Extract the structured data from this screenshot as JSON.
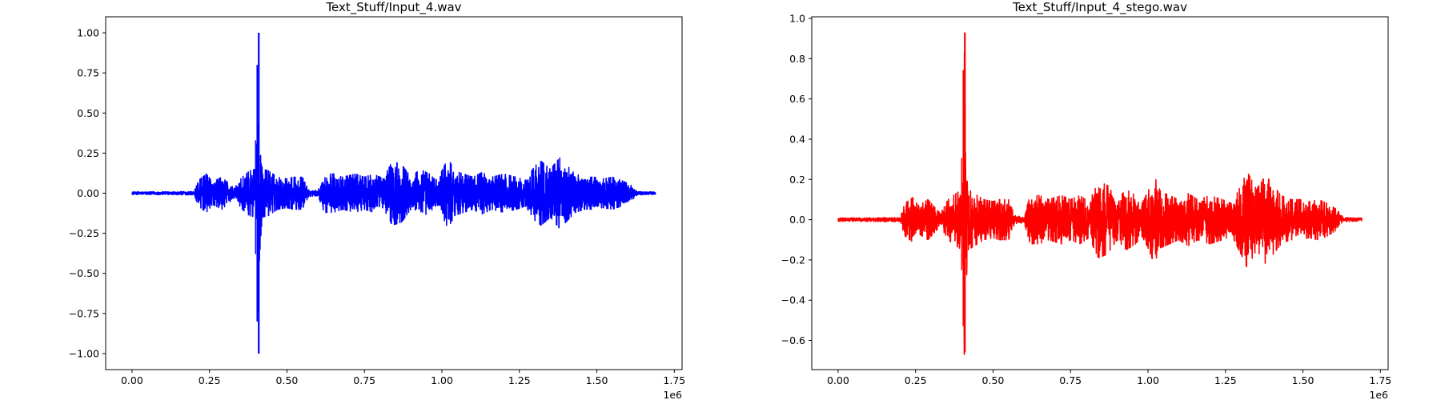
{
  "chart_data": [
    {
      "type": "line",
      "title": "Text_Stuff/Input_4.wav",
      "xlabel": "",
      "ylabel": "",
      "x_offset_text": "1e6",
      "color": "#0000ff",
      "xlim": [
        -0.085,
        1.775
      ],
      "ylim": [
        -1.1,
        1.1
      ],
      "xticks": [
        0.0,
        0.25,
        0.5,
        0.75,
        1.0,
        1.25,
        1.5,
        1.75
      ],
      "xtick_labels": [
        "0.00",
        "0.25",
        "0.50",
        "0.75",
        "1.00",
        "1.25",
        "1.50",
        "1.75"
      ],
      "yticks": [
        -1.0,
        -0.75,
        -0.5,
        -0.25,
        0.0,
        0.25,
        0.5,
        0.75,
        1.0
      ],
      "ytick_labels": [
        "−1.00",
        "−0.75",
        "−0.50",
        "−0.25",
        "0.00",
        "0.25",
        "0.50",
        "0.75",
        "1.00"
      ],
      "grid": false,
      "series": [
        {
          "x_range": [
            0.0,
            1.69
          ],
          "noise_floor": 0.008,
          "envelope": [
            [
              0.0,
              0.008
            ],
            [
              0.2,
              0.01
            ],
            [
              0.215,
              0.08
            ],
            [
              0.24,
              0.12
            ],
            [
              0.26,
              0.07
            ],
            [
              0.29,
              0.1
            ],
            [
              0.33,
              0.03
            ],
            [
              0.355,
              0.1
            ],
            [
              0.38,
              0.14
            ],
            [
              0.4,
              0.15
            ],
            [
              0.403,
              0.33
            ],
            [
              0.406,
              0.8
            ],
            [
              0.409,
              1.0
            ],
            [
              0.412,
              0.38
            ],
            [
              0.42,
              0.15
            ],
            [
              0.44,
              0.14
            ],
            [
              0.47,
              0.1
            ],
            [
              0.5,
              0.09
            ],
            [
              0.52,
              0.1
            ],
            [
              0.55,
              0.1
            ],
            [
              0.57,
              0.02
            ],
            [
              0.6,
              0.015
            ],
            [
              0.62,
              0.12
            ],
            [
              0.65,
              0.12
            ],
            [
              0.68,
              0.1
            ],
            [
              0.72,
              0.12
            ],
            [
              0.75,
              0.1
            ],
            [
              0.78,
              0.12
            ],
            [
              0.81,
              0.09
            ],
            [
              0.84,
              0.2
            ],
            [
              0.87,
              0.18
            ],
            [
              0.9,
              0.1
            ],
            [
              0.93,
              0.15
            ],
            [
              0.96,
              0.12
            ],
            [
              0.98,
              0.08
            ],
            [
              1.0,
              0.14
            ],
            [
              1.02,
              0.22
            ],
            [
              1.04,
              0.14
            ],
            [
              1.07,
              0.12
            ],
            [
              1.1,
              0.1
            ],
            [
              1.13,
              0.13
            ],
            [
              1.16,
              0.1
            ],
            [
              1.2,
              0.12
            ],
            [
              1.24,
              0.1
            ],
            [
              1.27,
              0.08
            ],
            [
              1.3,
              0.17
            ],
            [
              1.32,
              0.2
            ],
            [
              1.35,
              0.15
            ],
            [
              1.38,
              0.22
            ],
            [
              1.4,
              0.18
            ],
            [
              1.43,
              0.12
            ],
            [
              1.46,
              0.1
            ],
            [
              1.49,
              0.1
            ],
            [
              1.52,
              0.09
            ],
            [
              1.55,
              0.1
            ],
            [
              1.58,
              0.08
            ],
            [
              1.61,
              0.05
            ],
            [
              1.63,
              0.01
            ],
            [
              1.69,
              0.008
            ]
          ]
        }
      ]
    },
    {
      "type": "line",
      "title": "Text_Stuff/Input_4_stego.wav",
      "xlabel": "",
      "ylabel": "",
      "x_offset_text": "1e6",
      "color": "#ff0000",
      "xlim": [
        -0.085,
        1.775
      ],
      "ylim": [
        -0.745,
        1.008
      ],
      "xticks": [
        0.0,
        0.25,
        0.5,
        0.75,
        1.0,
        1.25,
        1.5,
        1.75
      ],
      "xtick_labels": [
        "0.00",
        "0.25",
        "0.50",
        "0.75",
        "1.00",
        "1.25",
        "1.50",
        "1.75"
      ],
      "yticks": [
        -0.6,
        -0.4,
        -0.2,
        0.0,
        0.2,
        0.4,
        0.6,
        0.8,
        1.0
      ],
      "ytick_labels": [
        "−0.6",
        "−0.4",
        "−0.2",
        "0.0",
        "0.2",
        "0.4",
        "0.6",
        "0.8",
        "1.0"
      ],
      "grid": false,
      "series": [
        {
          "x_range": [
            0.0,
            1.69
          ],
          "noise_floor": 0.008,
          "max_pos": 0.93,
          "max_neg": -0.66,
          "envelope": [
            [
              0.0,
              0.008
            ],
            [
              0.2,
              0.01
            ],
            [
              0.215,
              0.08
            ],
            [
              0.24,
              0.11
            ],
            [
              0.26,
              0.07
            ],
            [
              0.29,
              0.1
            ],
            [
              0.33,
              0.03
            ],
            [
              0.355,
              0.1
            ],
            [
              0.38,
              0.13
            ],
            [
              0.4,
              0.15
            ],
            [
              0.403,
              0.3
            ],
            [
              0.406,
              0.72
            ],
            [
              0.409,
              0.93
            ],
            [
              0.412,
              0.35
            ],
            [
              0.42,
              0.15
            ],
            [
              0.44,
              0.13
            ],
            [
              0.47,
              0.1
            ],
            [
              0.5,
              0.09
            ],
            [
              0.52,
              0.1
            ],
            [
              0.55,
              0.1
            ],
            [
              0.57,
              0.02
            ],
            [
              0.6,
              0.015
            ],
            [
              0.62,
              0.12
            ],
            [
              0.65,
              0.12
            ],
            [
              0.68,
              0.1
            ],
            [
              0.72,
              0.12
            ],
            [
              0.75,
              0.1
            ],
            [
              0.78,
              0.12
            ],
            [
              0.81,
              0.09
            ],
            [
              0.84,
              0.19
            ],
            [
              0.87,
              0.17
            ],
            [
              0.9,
              0.1
            ],
            [
              0.93,
              0.15
            ],
            [
              0.96,
              0.12
            ],
            [
              0.98,
              0.08
            ],
            [
              1.0,
              0.14
            ],
            [
              1.02,
              0.22
            ],
            [
              1.04,
              0.14
            ],
            [
              1.07,
              0.12
            ],
            [
              1.1,
              0.1
            ],
            [
              1.13,
              0.13
            ],
            [
              1.16,
              0.1
            ],
            [
              1.2,
              0.12
            ],
            [
              1.24,
              0.1
            ],
            [
              1.27,
              0.08
            ],
            [
              1.3,
              0.17
            ],
            [
              1.32,
              0.24
            ],
            [
              1.35,
              0.15
            ],
            [
              1.38,
              0.22
            ],
            [
              1.4,
              0.18
            ],
            [
              1.43,
              0.12
            ],
            [
              1.46,
              0.1
            ],
            [
              1.49,
              0.1
            ],
            [
              1.52,
              0.09
            ],
            [
              1.55,
              0.1
            ],
            [
              1.58,
              0.08
            ],
            [
              1.61,
              0.05
            ],
            [
              1.63,
              0.01
            ],
            [
              1.69,
              0.008
            ]
          ]
        }
      ]
    }
  ]
}
